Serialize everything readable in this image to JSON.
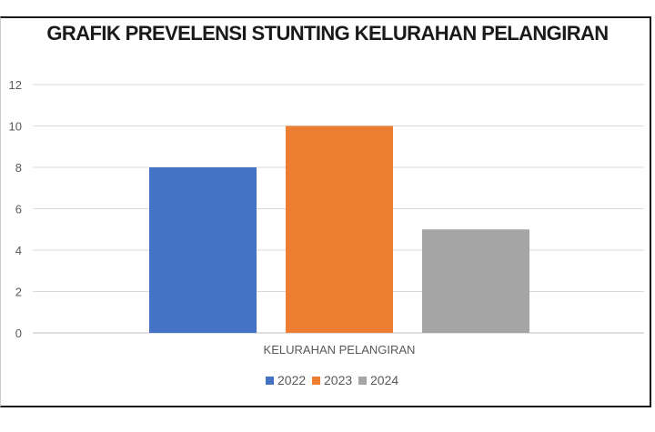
{
  "chart_data": {
    "type": "bar",
    "title": "GRAFIK PREVELENSI STUNTING KELURAHAN PELANGIRAN",
    "categories": [
      "KELURAHAN PELANGIRAN"
    ],
    "series": [
      {
        "name": "2022",
        "values": [
          8
        ],
        "color": "#4472C4"
      },
      {
        "name": "2023",
        "values": [
          10
        ],
        "color": "#ED7D31"
      },
      {
        "name": "2024",
        "values": [
          5
        ],
        "color": "#A5A5A5"
      }
    ],
    "ylim": [
      0,
      12
    ],
    "yticks": [
      0,
      2,
      4,
      6,
      8,
      10,
      12
    ],
    "grid": true,
    "legend_position": "bottom"
  }
}
